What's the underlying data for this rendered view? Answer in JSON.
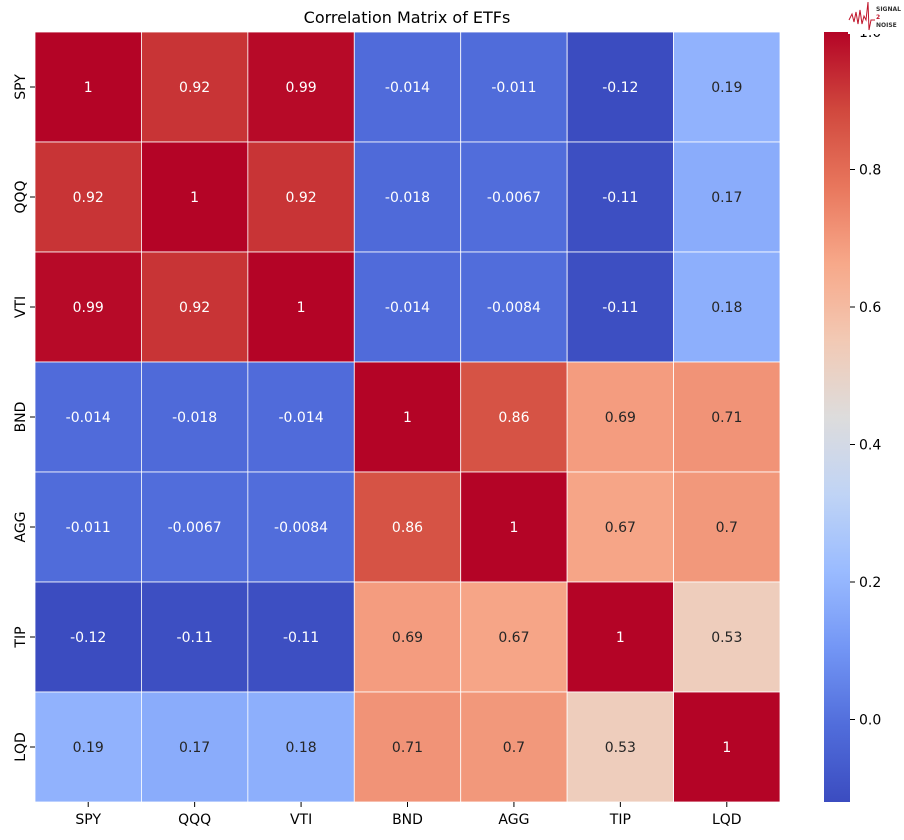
{
  "chart_data": {
    "type": "heatmap",
    "title": "Correlation Matrix of ETFs",
    "xlabel": "",
    "ylabel": "",
    "x_labels": [
      "SPY",
      "QQQ",
      "VTI",
      "BND",
      "AGG",
      "TIP",
      "LQD"
    ],
    "y_labels": [
      "SPY",
      "QQQ",
      "VTI",
      "BND",
      "AGG",
      "TIP",
      "LQD"
    ],
    "values": [
      [
        1,
        0.92,
        0.99,
        -0.014,
        -0.011,
        -0.12,
        0.19
      ],
      [
        0.92,
        1,
        0.92,
        -0.018,
        -0.0067,
        -0.11,
        0.17
      ],
      [
        0.99,
        0.92,
        1,
        -0.014,
        -0.0084,
        -0.11,
        0.18
      ],
      [
        -0.014,
        -0.018,
        -0.014,
        1,
        0.86,
        0.69,
        0.71
      ],
      [
        -0.011,
        -0.0067,
        -0.0084,
        0.86,
        1,
        0.67,
        0.7
      ],
      [
        -0.12,
        -0.11,
        -0.11,
        0.69,
        0.67,
        1,
        0.53
      ],
      [
        0.19,
        0.17,
        0.18,
        0.71,
        0.7,
        0.53,
        1
      ]
    ],
    "colormap": "coolwarm",
    "vmin": -0.12,
    "vmax": 1.0,
    "colorbar_ticks": [
      "0.0",
      "0.2",
      "0.4",
      "0.6",
      "0.8",
      "1.0"
    ],
    "annotated": true
  },
  "logo": {
    "text": "SIGNAL 2 NOISE",
    "color": "#c0142a"
  }
}
